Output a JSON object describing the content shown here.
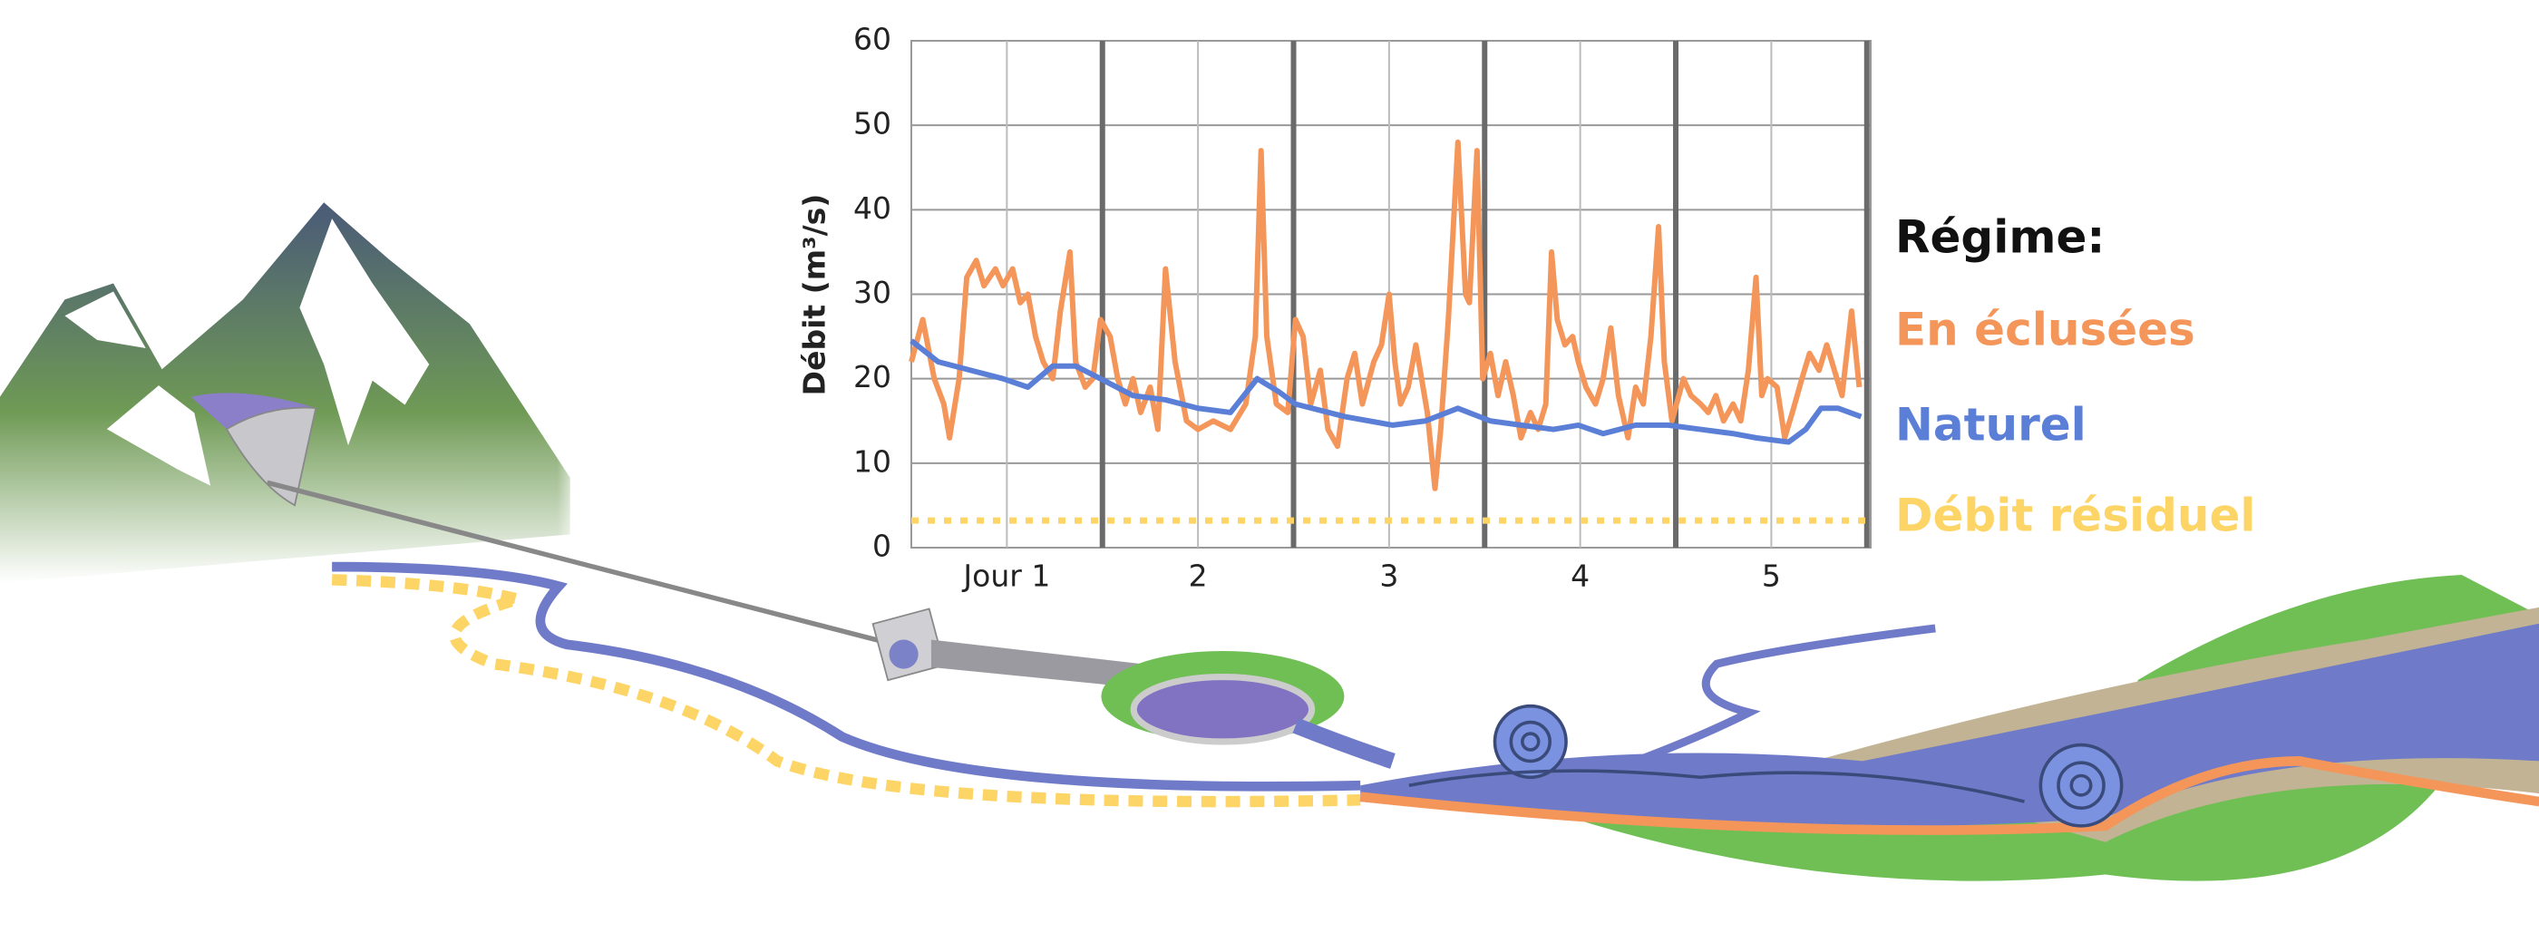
{
  "chart_data": {
    "type": "line",
    "ylabel": "Débit (m³/s)",
    "legend_title": "Régime:",
    "xlim": [
      0,
      5.02
    ],
    "ylim": [
      0,
      60
    ],
    "yticks": [
      0,
      10,
      20,
      30,
      40,
      50,
      60
    ],
    "xticks": [
      {
        "value": 0.5,
        "label": "Jour 1"
      },
      {
        "value": 1.5,
        "label": "2"
      },
      {
        "value": 2.5,
        "label": "3"
      },
      {
        "value": 3.5,
        "label": "4"
      },
      {
        "value": 4.5,
        "label": "5"
      }
    ],
    "xgrid_major": [
      1,
      2,
      3,
      4,
      5
    ],
    "grid": true,
    "series": [
      {
        "name": "En éclusées",
        "color": "#f4965a",
        "style": "solid",
        "x": [
          0,
          0.06,
          0.12,
          0.17,
          0.2,
          0.25,
          0.29,
          0.34,
          0.38,
          0.44,
          0.48,
          0.53,
          0.57,
          0.61,
          0.65,
          0.69,
          0.74,
          0.78,
          0.83,
          0.86,
          0.91,
          0.95,
          0.99,
          1.04,
          1.08,
          1.12,
          1.16,
          1.2,
          1.25,
          1.29,
          1.33,
          1.38,
          1.44,
          1.5,
          1.58,
          1.67,
          1.75,
          1.8,
          1.83,
          1.86,
          1.91,
          1.97,
          2.01,
          2.05,
          2.09,
          2.14,
          2.18,
          2.23,
          2.28,
          2.32,
          2.36,
          2.42,
          2.46,
          2.5,
          2.53,
          2.56,
          2.6,
          2.64,
          2.67,
          2.7,
          2.74,
          2.77,
          2.81,
          2.86,
          2.9,
          2.92,
          2.96,
          2.99,
          3.03,
          3.07,
          3.11,
          3.15,
          3.19,
          3.24,
          3.28,
          3.32,
          3.35,
          3.38,
          3.42,
          3.46,
          3.49,
          3.53,
          3.58,
          3.62,
          3.66,
          3.7,
          3.75,
          3.79,
          3.83,
          3.87,
          3.91,
          3.94,
          3.98,
          4.04,
          4.08,
          4.13,
          4.17,
          4.21,
          4.25,
          4.3,
          4.34,
          4.38,
          4.42,
          4.45,
          4.48,
          4.53,
          4.57,
          4.61,
          4.66,
          4.7,
          4.75,
          4.79,
          4.83,
          4.87,
          4.92,
          4.96
        ],
        "values": [
          22,
          27,
          20,
          17,
          13,
          20,
          32,
          34,
          31,
          33,
          31,
          33,
          29,
          30,
          25,
          22,
          20,
          28,
          35,
          22,
          19,
          20,
          27,
          25,
          20,
          17,
          20,
          16,
          19,
          14,
          33,
          22,
          15,
          14,
          15,
          14,
          17,
          25,
          47,
          25,
          17,
          16,
          27,
          25,
          17,
          21,
          14,
          12,
          20,
          23,
          17,
          22,
          24,
          30,
          22,
          17,
          19,
          24,
          20,
          16,
          7,
          14,
          27,
          48,
          30,
          29,
          47,
          20,
          23,
          18,
          22,
          18,
          13,
          16,
          14,
          17,
          35,
          27,
          24,
          25,
          22,
          19,
          17,
          20,
          26,
          18,
          13,
          19,
          17,
          25,
          38,
          22,
          15,
          20,
          18,
          17,
          16,
          18,
          15,
          17,
          15,
          21,
          32,
          18,
          20,
          19,
          13,
          16,
          20,
          23,
          21,
          24,
          21,
          18,
          28,
          19
        ]
      },
      {
        "name": "Naturel",
        "color": "#5b7fd6",
        "style": "solid",
        "x": [
          0,
          0.14,
          0.31,
          0.48,
          0.61,
          0.74,
          0.86,
          0.99,
          1.16,
          1.33,
          1.5,
          1.67,
          1.81,
          1.92,
          2.01,
          2.27,
          2.52,
          2.69,
          2.86,
          3.03,
          3.19,
          3.36,
          3.49,
          3.62,
          3.79,
          3.96,
          4.13,
          4.3,
          4.42,
          4.59,
          4.68,
          4.76,
          4.85,
          4.97
        ],
        "values": [
          24.5,
          22,
          21,
          20,
          19,
          21.5,
          21.5,
          20,
          18,
          17.5,
          16.5,
          16,
          20,
          18.5,
          17,
          15.5,
          14.5,
          15,
          16.5,
          15,
          14.5,
          14,
          14.5,
          13.5,
          14.5,
          14.5,
          14,
          13.5,
          13,
          12.5,
          14,
          16.5,
          16.5,
          15.5
        ]
      },
      {
        "name": "Débit résiduel",
        "color": "#fdd567",
        "style": "dotted",
        "x": [
          0,
          5.02
        ],
        "values": [
          3.2,
          3.2
        ]
      }
    ]
  }
}
